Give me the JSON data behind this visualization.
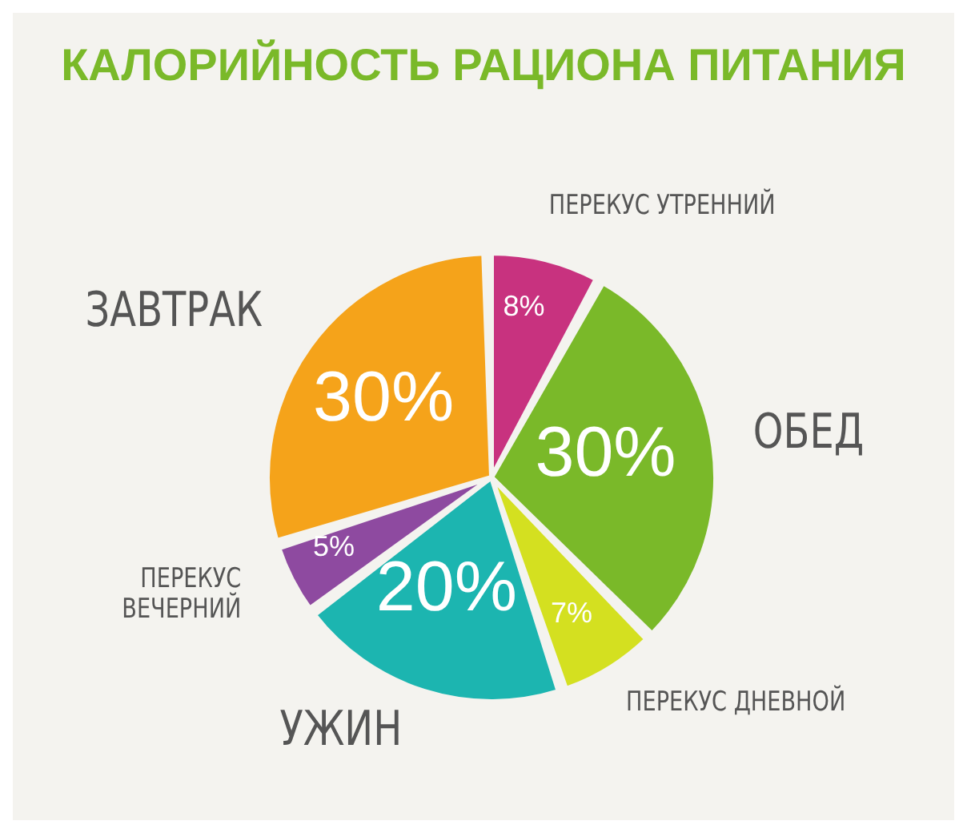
{
  "chart_data": {
    "type": "pie",
    "title": "КАЛОРИЙНОСТЬ РАЦИОНА ПИТАНИЯ",
    "categories": [
      "ПЕРЕКУС УТРЕННИЙ",
      "ОБЕД",
      "ПЕРЕКУС ДНЕВНОЙ",
      "УЖИН",
      "ПЕРЕКУС ВЕЧЕРНИЙ",
      "ЗАВТРАК"
    ],
    "values": [
      8,
      30,
      7,
      20,
      5,
      30
    ],
    "value_labels": [
      "8%",
      "30%",
      "7%",
      "20%",
      "5%",
      "30%"
    ],
    "colors": [
      "#c8327f",
      "#7ab929",
      "#d4e020",
      "#1cb5b0",
      "#8e4aa0",
      "#f5a31a"
    ],
    "legend": false
  }
}
